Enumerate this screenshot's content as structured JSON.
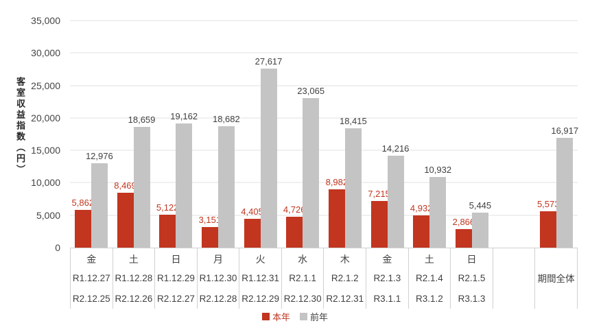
{
  "colors": {
    "current_year": "#c2351f",
    "previous_year": "#c4c4c4",
    "value_label_dark": "#404040",
    "gridline": "#e2e2e2",
    "table_border": "#d0d0d0"
  },
  "chart_data": {
    "type": "bar",
    "title": "",
    "xlabel": "",
    "ylabel": "客室収益指数（円）",
    "ylim": [
      0,
      35000
    ],
    "ytick_step": 5000,
    "yticks": [
      "0",
      "5,000",
      "10,000",
      "15,000",
      "20,000",
      "25,000",
      "30,000",
      "35,000"
    ],
    "grid": true,
    "legend_position": "bottom",
    "categories": [
      [
        "金",
        "R1.12.27",
        "R2.12.25"
      ],
      [
        "土",
        "R1.12.28",
        "R2.12.26"
      ],
      [
        "日",
        "R1.12.29",
        "R2.12.27"
      ],
      [
        "月",
        "R1.12.30",
        "R2.12.28"
      ],
      [
        "火",
        "R1.12.31",
        "R2.12.29"
      ],
      [
        "水",
        "R2.1.1",
        "R2.12.30"
      ],
      [
        "木",
        "R2.1.2",
        "R2.12.31"
      ],
      [
        "金",
        "R2.1.3",
        "R3.1.1"
      ],
      [
        "土",
        "R2.1.4",
        "R3.1.2"
      ],
      [
        "日",
        "R2.1.5",
        "R3.1.3"
      ],
      [
        "",
        "",
        ""
      ],
      [
        "",
        "期間全体",
        ""
      ]
    ],
    "series": [
      {
        "name": "本年",
        "color": "#c2351f",
        "label_color": "#c2351f",
        "values": [
          5862,
          8469,
          5122,
          3151,
          4405,
          4726,
          8982,
          7215,
          4932,
          2866,
          null,
          5573
        ],
        "labels": [
          "5,862",
          "8,469",
          "5,122",
          "3,151",
          "4,405",
          "4,726",
          "8,982",
          "7,215",
          "4,932",
          "2,866",
          null,
          "5,573"
        ]
      },
      {
        "name": "前年",
        "color": "#c4c4c4",
        "label_color": "#404040",
        "values": [
          12976,
          18659,
          19162,
          18682,
          27617,
          23065,
          18415,
          14216,
          10932,
          5445,
          null,
          16917
        ],
        "labels": [
          "12,976",
          "18,659",
          "19,162",
          "18,682",
          "27,617",
          "23,065",
          "18,415",
          "14,216",
          "10,932",
          "5,445",
          null,
          "16,917"
        ]
      }
    ]
  },
  "legend": {
    "current_label": "本年",
    "previous_label": "前年"
  }
}
